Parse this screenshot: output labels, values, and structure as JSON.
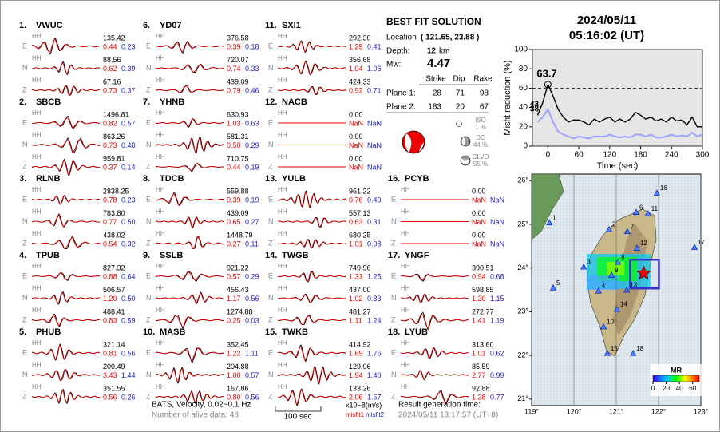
{
  "header": {
    "date": "2024/05/11",
    "time": "05:16:02  (UT)"
  },
  "stations": [
    {
      "label": "1.",
      "name": "VWUC",
      "channels": [
        {
          "net": "HH",
          "comp": "E",
          "amp": "135.42",
          "misfit1": "0.44",
          "misfit2": "0.23"
        },
        {
          "net": "HH",
          "comp": "N",
          "amp": "88.56",
          "misfit1": "0.62",
          "misfit2": "0.39"
        },
        {
          "net": "HH",
          "comp": "Z",
          "amp": "67.16",
          "misfit1": "0.73",
          "misfit2": "0.37"
        }
      ]
    },
    {
      "label": "2.",
      "name": "SBCB",
      "channels": [
        {
          "net": "HH",
          "comp": "E",
          "amp": "1496.81",
          "misfit1": "0.82",
          "misfit2": "0.57"
        },
        {
          "net": "HH",
          "comp": "N",
          "amp": "863.26",
          "misfit1": "0.73",
          "misfit2": "0.48"
        },
        {
          "net": "HH",
          "comp": "Z",
          "amp": "959.81",
          "misfit1": "0.37",
          "misfit2": "0.14"
        }
      ]
    },
    {
      "label": "3.",
      "name": "RLNB",
      "channels": [
        {
          "net": "HH",
          "comp": "E",
          "amp": "2838.25",
          "misfit1": "0.78",
          "misfit2": "0.23"
        },
        {
          "net": "HH",
          "comp": "N",
          "amp": "783.80",
          "misfit1": "0.77",
          "misfit2": "0.50"
        },
        {
          "net": "HH",
          "comp": "Z",
          "amp": "438.02",
          "misfit1": "0.54",
          "misfit2": "0.32"
        }
      ]
    },
    {
      "label": "4.",
      "name": "TPUB",
      "channels": [
        {
          "net": "HH",
          "comp": "E",
          "amp": "827.32",
          "misfit1": "0.88",
          "misfit2": "0.64"
        },
        {
          "net": "HH",
          "comp": "N",
          "amp": "506.57",
          "misfit1": "1.20",
          "misfit2": "0.50"
        },
        {
          "net": "HH",
          "comp": "Z",
          "amp": "488.41",
          "misfit1": "0.83",
          "misfit2": "0.59"
        }
      ]
    },
    {
      "label": "5.",
      "name": "PHUB",
      "channels": [
        {
          "net": "HH",
          "comp": "E",
          "amp": "321.14",
          "misfit1": "0.81",
          "misfit2": "0.56"
        },
        {
          "net": "HH",
          "comp": "N",
          "amp": "200.49",
          "misfit1": "3.43",
          "misfit2": "1.44"
        },
        {
          "net": "HH",
          "comp": "Z",
          "amp": "351.55",
          "misfit1": "0.56",
          "misfit2": "0.26"
        }
      ]
    },
    {
      "label": "6.",
      "name": "YD07",
      "channels": [
        {
          "net": "HH",
          "comp": "E",
          "amp": "376.58",
          "misfit1": "0.39",
          "misfit2": "0.18"
        },
        {
          "net": "HH",
          "comp": "N",
          "amp": "720.07",
          "misfit1": "0.74",
          "misfit2": "0.33"
        },
        {
          "net": "HH",
          "comp": "Z",
          "amp": "439.09",
          "misfit1": "0.79",
          "misfit2": "0.46"
        }
      ]
    },
    {
      "label": "7.",
      "name": "YHNB",
      "channels": [
        {
          "net": "HH",
          "comp": "E",
          "amp": "630.93",
          "misfit1": "1.03",
          "misfit2": "0.63"
        },
        {
          "net": "HH",
          "comp": "N",
          "amp": "581.31",
          "misfit1": "0.50",
          "misfit2": "0.29"
        },
        {
          "net": "HH",
          "comp": "Z",
          "amp": "710.75",
          "misfit1": "0.44",
          "misfit2": "0.19"
        }
      ]
    },
    {
      "label": "8.",
      "name": "TDCB",
      "channels": [
        {
          "net": "HH",
          "comp": "E",
          "amp": "559.88",
          "misfit1": "0.39",
          "misfit2": "0.19"
        },
        {
          "net": "HH",
          "comp": "N",
          "amp": "439.09",
          "misfit1": "0.65",
          "misfit2": "0.27"
        },
        {
          "net": "HH",
          "comp": "Z",
          "amp": "1448.79",
          "misfit1": "0.27",
          "misfit2": "0.11"
        }
      ]
    },
    {
      "label": "9.",
      "name": "SSLB",
      "channels": [
        {
          "net": "HH",
          "comp": "E",
          "amp": "921.22",
          "misfit1": "0.57",
          "misfit2": "0.29"
        },
        {
          "net": "HH",
          "comp": "N",
          "amp": "456.43",
          "misfit1": "1.17",
          "misfit2": "0.56"
        },
        {
          "net": "HH",
          "comp": "Z",
          "amp": "1274.88",
          "misfit1": "0.25",
          "misfit2": "0.03"
        }
      ]
    },
    {
      "label": "10.",
      "name": "MASB",
      "channels": [
        {
          "net": "HH",
          "comp": "E",
          "amp": "352.45",
          "misfit1": "1.22",
          "misfit2": "1.11"
        },
        {
          "net": "HH",
          "comp": "N",
          "amp": "204.88",
          "misfit1": "1.00",
          "misfit2": "0.57"
        },
        {
          "net": "HH",
          "comp": "Z",
          "amp": "167.86",
          "misfit1": "0.80",
          "misfit2": "0.56"
        }
      ]
    },
    {
      "label": "11.",
      "name": "SXI1",
      "channels": [
        {
          "net": "HH",
          "comp": "E",
          "amp": "292.30",
          "misfit1": "1.29",
          "misfit2": "0.41"
        },
        {
          "net": "HH",
          "comp": "N",
          "amp": "356.68",
          "misfit1": "1.04",
          "misfit2": "1.06"
        },
        {
          "net": "HH",
          "comp": "Z",
          "amp": "424.33",
          "misfit1": "0.92",
          "misfit2": "0.71"
        }
      ]
    },
    {
      "label": "12.",
      "name": "NACB",
      "channels": [
        {
          "net": "HH",
          "comp": "E",
          "amp": "0.00",
          "misfit1": "NaN",
          "misfit2": "NaN"
        },
        {
          "net": "HH",
          "comp": "N",
          "amp": "0.00",
          "misfit1": "NaN",
          "misfit2": "NaN"
        },
        {
          "net": "HH",
          "comp": "Z",
          "amp": "0.00",
          "misfit1": "NaN",
          "misfit2": "NaN"
        }
      ]
    },
    {
      "label": "13.",
      "name": "YULB",
      "channels": [
        {
          "net": "HH",
          "comp": "E",
          "amp": "961.22",
          "misfit1": "0.76",
          "misfit2": "0.49"
        },
        {
          "net": "HH",
          "comp": "N",
          "amp": "557.13",
          "misfit1": "0.63",
          "misfit2": "0.31"
        },
        {
          "net": "HH",
          "comp": "Z",
          "amp": "680.25",
          "misfit1": "1.01",
          "misfit2": "0.98"
        }
      ]
    },
    {
      "label": "14.",
      "name": "TWGB",
      "channels": [
        {
          "net": "HH",
          "comp": "E",
          "amp": "749.96",
          "misfit1": "1.31",
          "misfit2": "1.25"
        },
        {
          "net": "HH",
          "comp": "N",
          "amp": "437.00",
          "misfit1": "1.02",
          "misfit2": "0.83"
        },
        {
          "net": "HH",
          "comp": "Z",
          "amp": "481.27",
          "misfit1": "1.11",
          "misfit2": "1.24"
        }
      ]
    },
    {
      "label": "15.",
      "name": "TWKB",
      "channels": [
        {
          "net": "HH",
          "comp": "E",
          "amp": "414.92",
          "misfit1": "1.69",
          "misfit2": "1.76"
        },
        {
          "net": "HH",
          "comp": "N",
          "amp": "129.06",
          "misfit1": "1.94",
          "misfit2": "1.40"
        },
        {
          "net": "HH",
          "comp": "Z",
          "amp": "133.26",
          "misfit1": "2.06",
          "misfit2": "1.57"
        }
      ]
    },
    {
      "label": "16.",
      "name": "PCYB",
      "channels": [
        {
          "net": "HH",
          "comp": "E",
          "amp": "0.00",
          "misfit1": "NaN",
          "misfit2": "NaN"
        },
        {
          "net": "HH",
          "comp": "N",
          "amp": "0.00",
          "misfit1": "NaN",
          "misfit2": "NaN"
        },
        {
          "net": "HH",
          "comp": "Z",
          "amp": "0.00",
          "misfit1": "NaN",
          "misfit2": "NaN"
        }
      ]
    },
    {
      "label": "17.",
      "name": "YNGF",
      "channels": [
        {
          "net": "HH",
          "comp": "E",
          "amp": "390.51",
          "misfit1": "0.94",
          "misfit2": "0.68"
        },
        {
          "net": "HH",
          "comp": "N",
          "amp": "598.85",
          "misfit1": "1.20",
          "misfit2": "1.15"
        },
        {
          "net": "HH",
          "comp": "Z",
          "amp": "272.77",
          "misfit1": "1.41",
          "misfit2": "1.19"
        }
      ]
    },
    {
      "label": "18.",
      "name": "LYUB",
      "channels": [
        {
          "net": "HH",
          "comp": "E",
          "amp": "313.60",
          "misfit1": "1.01",
          "misfit2": "0.62"
        },
        {
          "net": "HH",
          "comp": "N",
          "amp": "85.59",
          "misfit1": "2.77",
          "misfit2": "0.99"
        },
        {
          "net": "HH",
          "comp": "Z",
          "amp": "92.88",
          "misfit1": "1.28",
          "misfit2": "0.77"
        }
      ]
    }
  ],
  "solution": {
    "title": "BEST FIT SOLUTION",
    "location_label": "Location",
    "location": "( 121.65, 23.88 )",
    "depth_label": "Depth:",
    "depth": "12",
    "depth_unit": "km",
    "mw_label": "Mw:",
    "mw": "4.47",
    "columns": [
      "Strike",
      "Dip",
      "Rake"
    ],
    "planes": [
      {
        "label": "Plane 1:",
        "values": [
          "28",
          "71",
          "98"
        ]
      },
      {
        "label": "Plane 2:",
        "values": [
          "183",
          "20",
          "67"
        ]
      }
    ],
    "components": [
      {
        "name": "ISO",
        "value": "1 %"
      },
      {
        "name": "DC",
        "value": "44 %"
      },
      {
        "name": "CLVD",
        "value": "55 %"
      }
    ]
  },
  "footer": {
    "filter": "BATS, Velocity, 0.02~0.1 Hz",
    "alive": "Number of alive data: 48",
    "scale": "100 sec",
    "unit": "x10−8(m/s)",
    "misfit1": "misfit1",
    "misfit2": "misfit2",
    "gen_label": "Result generation time:",
    "gen_time": "2024/05/11 13:17:57 (UT+8)"
  },
  "chart_data": {
    "type": "line",
    "x_label": "Time (sec)",
    "y_label": "Misfit reduction (%)",
    "x": [
      -20,
      -10,
      0,
      10,
      20,
      30,
      40,
      50,
      60,
      70,
      80,
      90,
      100,
      110,
      120,
      130,
      140,
      150,
      160,
      170,
      180,
      190,
      200,
      210,
      220,
      230,
      240,
      250,
      260,
      270,
      280,
      290,
      300
    ],
    "series": [
      {
        "color": "#000000",
        "values": [
          32,
          45,
          63.7,
          52,
          38,
          30,
          25,
          27,
          27,
          25,
          22,
          28,
          25,
          28,
          30,
          25,
          28,
          25,
          28,
          35,
          32,
          28,
          30,
          26,
          28,
          25,
          30,
          26,
          27,
          22,
          30,
          20,
          20
        ]
      },
      {
        "color": "#a0a0ff",
        "values": [
          25,
          30,
          38,
          25,
          15,
          12,
          10,
          8,
          10,
          9,
          8,
          10,
          10,
          10,
          12,
          10,
          9,
          10,
          9,
          12,
          12,
          10,
          12,
          9,
          9,
          10,
          12,
          10,
          11,
          10,
          14,
          10,
          12
        ]
      }
    ],
    "threshold": 60,
    "annotations": [
      {
        "text": "63.7",
        "x": 0,
        "y": 63.7,
        "color": "#e00000"
      },
      {
        "text": "43",
        "x": -20,
        "y": 43,
        "color": "#999999"
      },
      {
        "text": "38",
        "x": -20,
        "y": 38,
        "color": "#a0a0ff"
      }
    ],
    "xlim": [
      -30,
      300
    ],
    "ylim": [
      0,
      100
    ],
    "xticks": [
      0,
      60,
      120,
      180,
      240,
      300
    ],
    "yticks": [
      0,
      20,
      40,
      60,
      80,
      100
    ]
  },
  "map": {
    "xlim": [
      119,
      123
    ],
    "ylim": [
      20.85,
      26.15
    ],
    "xticks": [
      {
        "value": 119,
        "label": "119°"
      },
      {
        "value": 120,
        "label": "120°"
      },
      {
        "value": 121,
        "label": "121°"
      },
      {
        "value": 122,
        "label": "122°"
      },
      {
        "value": 123,
        "label": "123°"
      }
    ],
    "yticks": [
      {
        "value": 21,
        "label": "21°"
      },
      {
        "value": 22,
        "label": "22°"
      },
      {
        "value": 23,
        "label": "23°"
      },
      {
        "value": 24,
        "label": "24°"
      },
      {
        "value": 25,
        "label": "25°"
      },
      {
        "value": 26,
        "label": "26°"
      }
    ],
    "stations": [
      {
        "label": "1",
        "lon": 119.42,
        "lat": 25.03
      },
      {
        "label": "2",
        "lon": 120.83,
        "lat": 24.88
      },
      {
        "label": "3",
        "lon": 120.23,
        "lat": 24.02
      },
      {
        "label": "4",
        "lon": 120.58,
        "lat": 23.47
      },
      {
        "label": "5",
        "lon": 119.51,
        "lat": 23.54
      },
      {
        "label": "6",
        "lon": 121.47,
        "lat": 25.27
      },
      {
        "label": "7",
        "lon": 121.26,
        "lat": 24.83
      },
      {
        "label": "8",
        "lon": 121.04,
        "lat": 24.13
      },
      {
        "label": "9",
        "lon": 120.89,
        "lat": 23.83
      },
      {
        "label": "10",
        "lon": 120.7,
        "lat": 22.65
      },
      {
        "label": "11",
        "lon": 121.75,
        "lat": 25.24
      },
      {
        "label": "12",
        "lon": 121.49,
        "lat": 24.45
      },
      {
        "label": "13",
        "lon": 121.25,
        "lat": 23.49
      },
      {
        "label": "14",
        "lon": 121.02,
        "lat": 23.05
      },
      {
        "label": "15",
        "lon": 120.79,
        "lat": 22.04
      },
      {
        "label": "16",
        "lon": 121.96,
        "lat": 25.71
      },
      {
        "label": "17",
        "lon": 122.85,
        "lat": 24.47
      },
      {
        "label": "18",
        "lon": 121.4,
        "lat": 22.04
      }
    ],
    "epicenter": {
      "lon": 121.65,
      "lat": 23.88
    },
    "colorbar": {
      "title": "MR",
      "lim": [
        0,
        70
      ],
      "ticks": [
        0,
        20,
        40,
        60
      ]
    }
  }
}
